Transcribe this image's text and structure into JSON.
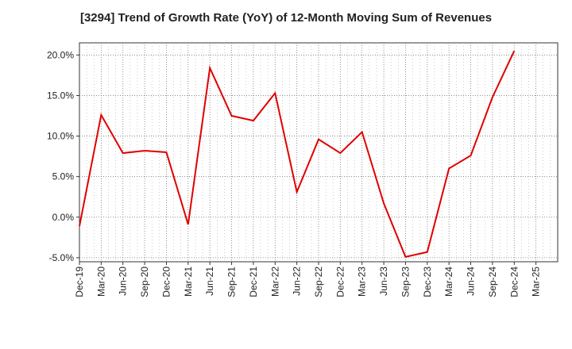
{
  "chart_data": {
    "type": "line",
    "title": "[3294]  Trend of Growth Rate (YoY) of 12-Month Moving Sum of Revenues",
    "xlabel": "",
    "ylabel": "",
    "ylim": [
      -5.5,
      21.5
    ],
    "y_ticks": [
      {
        "value": 20,
        "label": "20.0%"
      },
      {
        "value": 15,
        "label": "15.0%"
      },
      {
        "value": 10,
        "label": "10.0%"
      },
      {
        "value": 5,
        "label": "5.0%"
      },
      {
        "value": 0,
        "label": "0.0%"
      },
      {
        "value": -5,
        "label": "-5.0%"
      }
    ],
    "x_ticks": [
      "Dec-19",
      "Mar-20",
      "Jun-20",
      "Sep-20",
      "Dec-20",
      "Mar-21",
      "Jun-21",
      "Sep-21",
      "Dec-21",
      "Mar-22",
      "Jun-22",
      "Sep-22",
      "Dec-22",
      "Mar-23",
      "Jun-23",
      "Sep-23",
      "Dec-23",
      "Mar-24",
      "Jun-24",
      "Sep-24",
      "Dec-24",
      "Mar-25"
    ],
    "grid": true,
    "line_color": "#e00000",
    "series": [
      {
        "x": [
          "Dec-19",
          "Mar-20",
          "Jun-20",
          "Sep-20",
          "Dec-20",
          "Mar-21",
          "Jun-21",
          "Sep-21",
          "Dec-21",
          "Mar-22",
          "Jun-22",
          "Sep-22",
          "Dec-22",
          "Mar-23",
          "Jun-23",
          "Sep-23",
          "Dec-23",
          "Mar-24",
          "Jun-24",
          "Sep-24",
          "Dec-24"
        ],
        "values": [
          -1.1,
          12.6,
          7.9,
          8.2,
          8.0,
          -0.9,
          18.4,
          12.5,
          11.9,
          15.3,
          3.1,
          9.6,
          7.9,
          10.5,
          1.7,
          -4.9,
          -4.3,
          6.0,
          7.6,
          14.8,
          20.5
        ]
      }
    ]
  }
}
